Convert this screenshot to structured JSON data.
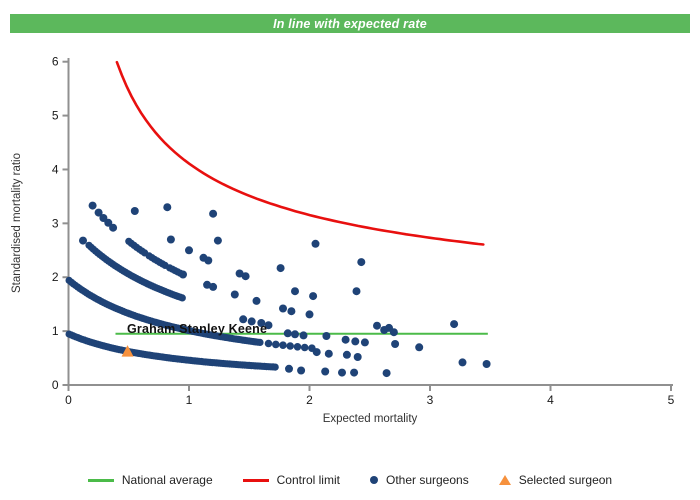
{
  "header": {
    "title": "In line with expected rate",
    "bg_color": "#5cb85c",
    "text_color": "#ffffff"
  },
  "chart_data": {
    "type": "scatter",
    "title": "",
    "xlabel": "Expected mortality",
    "ylabel": "Standardised mortality ratio",
    "xlim": [
      0,
      5
    ],
    "ylim": [
      0,
      6
    ],
    "x_ticks": [
      0,
      1,
      2,
      3,
      4,
      5
    ],
    "y_ticks": [
      0,
      1,
      2,
      3,
      4,
      5,
      6
    ],
    "grid": false,
    "legend_position": "bottom",
    "colors": {
      "axis": "#909090",
      "tick_label": "#1a1a1a",
      "surgeon_dot": "#1f4377",
      "control_limit": "#e8100f",
      "national_average": "#4bbb49",
      "selected_surgeon": "#f6913d"
    },
    "national_average": {
      "y": 0.95,
      "x_start": 0.39,
      "x_end": 3.48
    },
    "control_limit": {
      "formula": "y = 0.85 + 3.26/sqrt(x)",
      "a": 0.85,
      "b": 3.26,
      "x_start": 0.402,
      "x_end": 3.48,
      "sample_points": [
        [
          0.4,
          6.0
        ],
        [
          0.6,
          5.06
        ],
        [
          0.8,
          4.49
        ],
        [
          1.0,
          4.11
        ],
        [
          1.5,
          3.51
        ],
        [
          2.0,
          3.16
        ],
        [
          2.5,
          2.91
        ],
        [
          3.0,
          2.73
        ],
        [
          3.48,
          2.6
        ]
      ]
    },
    "selected_surgeon": {
      "label": "Graham Stanley Keene",
      "x": 0.49,
      "y": 0.62
    },
    "other_surgeons": {
      "dense_bands": [
        {
          "name": "band-1",
          "A": 0.95,
          "p": 1.05,
          "segments": [
            [
              0.005,
              1.72
            ]
          ],
          "step": 0.018,
          "r": 3.6
        },
        {
          "name": "band-2",
          "A": 1.95,
          "p": 0.95,
          "segments": [
            [
              0.005,
              1.6
            ]
          ],
          "step": 0.018,
          "r": 3.6
        },
        {
          "name": "band-2-dotted-tail",
          "A": 1.95,
          "p": 0.95,
          "segments": [
            [
              1.66,
              2.02
            ]
          ],
          "step": 0.06,
          "r": 3.8
        },
        {
          "name": "band-3",
          "A": 3.0,
          "p": 0.93,
          "segments": [
            [
              0.17,
              0.95
            ]
          ],
          "step": 0.018,
          "r": 3.6
        },
        {
          "name": "band-4-dashes",
          "A": 4.0,
          "p": 1.0,
          "segments": [
            [
              0.5,
              0.64
            ],
            [
              0.67,
              0.81
            ],
            [
              0.84,
              0.97
            ]
          ],
          "step": 0.022,
          "r": 3.6
        }
      ],
      "points": [
        [
          0.12,
          2.68
        ],
        [
          0.2,
          3.33
        ],
        [
          0.25,
          3.2
        ],
        [
          0.29,
          3.1
        ],
        [
          0.33,
          3.01
        ],
        [
          0.37,
          2.92
        ],
        [
          0.55,
          3.23
        ],
        [
          0.82,
          3.3
        ],
        [
          1.2,
          3.18
        ],
        [
          0.85,
          2.7
        ],
        [
          1.0,
          2.5
        ],
        [
          1.12,
          2.36
        ],
        [
          1.16,
          2.31
        ],
        [
          1.24,
          2.68
        ],
        [
          1.42,
          2.07
        ],
        [
          1.47,
          2.02
        ],
        [
          1.76,
          2.17
        ],
        [
          2.05,
          2.62
        ],
        [
          2.43,
          2.28
        ],
        [
          2.39,
          1.74
        ],
        [
          0.95,
          2.05
        ],
        [
          1.15,
          1.86
        ],
        [
          1.2,
          1.82
        ],
        [
          1.38,
          1.68
        ],
        [
          1.56,
          1.56
        ],
        [
          1.88,
          1.74
        ],
        [
          2.03,
          1.65
        ],
        [
          1.78,
          1.42
        ],
        [
          1.85,
          1.37
        ],
        [
          2.0,
          1.31
        ],
        [
          1.45,
          1.22
        ],
        [
          1.52,
          1.18
        ],
        [
          1.6,
          1.15
        ],
        [
          1.66,
          1.11
        ],
        [
          3.2,
          1.13
        ],
        [
          2.56,
          1.1
        ],
        [
          2.66,
          1.06
        ],
        [
          1.82,
          0.96
        ],
        [
          1.88,
          0.94
        ],
        [
          1.95,
          0.92
        ],
        [
          2.62,
          1.02
        ],
        [
          2.7,
          0.98
        ],
        [
          2.14,
          0.91
        ],
        [
          2.3,
          0.84
        ],
        [
          2.38,
          0.81
        ],
        [
          2.46,
          0.79
        ],
        [
          2.71,
          0.76
        ],
        [
          2.91,
          0.7
        ],
        [
          2.06,
          0.61
        ],
        [
          2.16,
          0.58
        ],
        [
          2.31,
          0.56
        ],
        [
          2.4,
          0.52
        ],
        [
          3.27,
          0.42
        ],
        [
          3.47,
          0.39
        ],
        [
          1.83,
          0.3
        ],
        [
          1.93,
          0.27
        ],
        [
          2.13,
          0.25
        ],
        [
          2.27,
          0.23
        ],
        [
          2.37,
          0.23
        ],
        [
          2.64,
          0.22
        ]
      ]
    }
  },
  "legend": {
    "items": [
      {
        "label": "National average",
        "type": "line",
        "color": "#4bbb49"
      },
      {
        "label": "Control limit",
        "type": "line",
        "color": "#e8100f"
      },
      {
        "label": "Other surgeons",
        "type": "dot",
        "color": "#1f4377"
      },
      {
        "label": "Selected surgeon",
        "type": "triangle",
        "color": "#f6913d"
      }
    ]
  }
}
